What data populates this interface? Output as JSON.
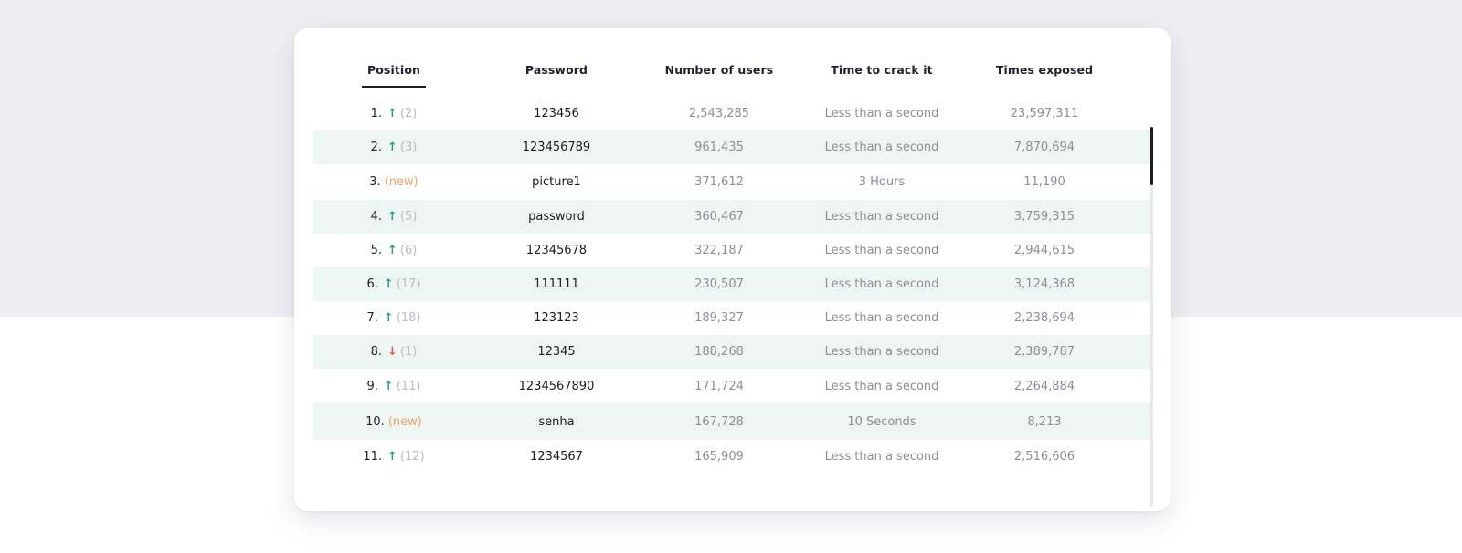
{
  "table": {
    "headers": {
      "position": "Position",
      "password": "Password",
      "users": "Number of users",
      "crack": "Time to crack it",
      "exposed": "Times exposed"
    },
    "rows": [
      {
        "pos": "1.",
        "trend": "up",
        "prev": "(2)",
        "password": "123456",
        "users": "2,543,285",
        "crack": "Less than a second",
        "exposed": "23,597,311"
      },
      {
        "pos": "2.",
        "trend": "up",
        "prev": "(3)",
        "password": "123456789",
        "users": "961,435",
        "crack": "Less than a second",
        "exposed": "7,870,694"
      },
      {
        "pos": "3.",
        "trend": "new",
        "prev": "(new)",
        "password": "picture1",
        "users": "371,612",
        "crack": "3 Hours",
        "exposed": "11,190"
      },
      {
        "pos": "4.",
        "trend": "up",
        "prev": "(5)",
        "password": "password",
        "users": "360,467",
        "crack": "Less than a second",
        "exposed": "3,759,315"
      },
      {
        "pos": "5.",
        "trend": "up",
        "prev": "(6)",
        "password": "12345678",
        "users": "322,187",
        "crack": "Less than a second",
        "exposed": "2,944,615"
      },
      {
        "pos": "6.",
        "trend": "up",
        "prev": "(17)",
        "password": "111111",
        "users": "230,507",
        "crack": "Less than a second",
        "exposed": "3,124,368"
      },
      {
        "pos": "7.",
        "trend": "up",
        "prev": "(18)",
        "password": "123123",
        "users": "189,327",
        "crack": "Less than a second",
        "exposed": "2,238,694"
      },
      {
        "pos": "8.",
        "trend": "down",
        "prev": "(1)",
        "password": "12345",
        "users": "188,268",
        "crack": "Less than a second",
        "exposed": "2,389,787"
      },
      {
        "pos": "9.",
        "trend": "up",
        "prev": "(11)",
        "password": "1234567890",
        "users": "171,724",
        "crack": "Less than a second",
        "exposed": "2,264,884"
      },
      {
        "pos": "10.",
        "trend": "new",
        "prev": "(new)",
        "password": "senha",
        "users": "167,728",
        "crack": "10 Seconds",
        "exposed": "8,213"
      },
      {
        "pos": "11.",
        "trend": "up",
        "prev": "(12)",
        "password": "1234567",
        "users": "165,909",
        "crack": "Less than a second",
        "exposed": "2,516,606"
      }
    ]
  },
  "icons": {
    "up": "arrow-up-icon",
    "down": "arrow-down-icon"
  },
  "colors": {
    "accent_up": "#2a9d8f",
    "accent_down": "#e15b5b",
    "new_badge": "#f0a35e",
    "stripe": "#eef6f4"
  }
}
